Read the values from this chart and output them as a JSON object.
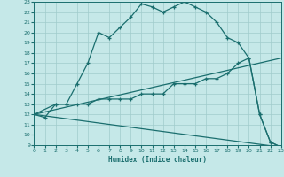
{
  "title": "",
  "xlabel": "Humidex (Indice chaleur)",
  "xlim": [
    0,
    23
  ],
  "ylim": [
    9,
    23
  ],
  "background_color": "#c5e8e8",
  "grid_color": "#a0cccc",
  "line_color": "#1a6e6e",
  "xticks": [
    0,
    1,
    2,
    3,
    4,
    5,
    6,
    7,
    8,
    9,
    10,
    11,
    12,
    13,
    14,
    15,
    16,
    17,
    18,
    19,
    20,
    21,
    22,
    23
  ],
  "yticks": [
    9,
    10,
    11,
    12,
    13,
    14,
    15,
    16,
    17,
    18,
    19,
    20,
    21,
    22,
    23
  ],
  "line1_x": [
    0,
    1,
    2,
    3,
    4,
    5,
    6,
    7,
    8,
    9,
    10,
    11,
    12,
    13,
    14,
    15,
    16,
    17,
    18,
    19,
    20,
    21,
    22,
    23
  ],
  "line1_y": [
    12,
    11.7,
    13,
    13,
    15,
    17,
    20,
    19.5,
    20.5,
    21.5,
    22.8,
    22.5,
    22,
    22.5,
    23,
    22.5,
    22,
    21,
    19.5,
    19,
    17.5,
    12,
    9.3,
    8.8
  ],
  "line2_x": [
    0,
    2,
    3,
    4,
    5,
    6,
    7,
    8,
    9,
    10,
    11,
    12,
    13,
    14,
    15,
    16,
    17,
    18,
    19,
    20,
    21,
    22,
    23
  ],
  "line2_y": [
    12,
    13,
    13,
    13,
    13,
    13.5,
    13.5,
    13.5,
    13.5,
    14,
    14,
    14,
    15,
    15,
    15,
    15.5,
    15.5,
    16,
    17,
    17.5,
    12,
    9.3,
    8.8
  ],
  "line3_x": [
    0,
    23
  ],
  "line3_y": [
    12,
    17.5
  ],
  "line4_x": [
    0,
    23
  ],
  "line4_y": [
    12,
    8.8
  ]
}
